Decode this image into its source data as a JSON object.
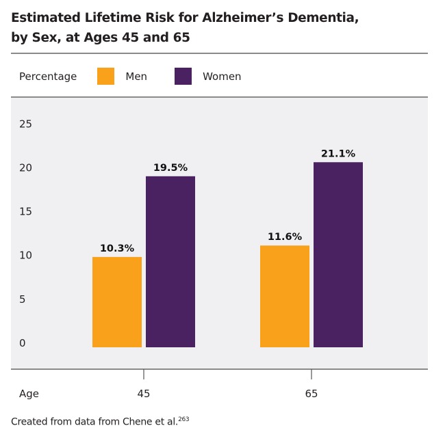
{
  "chart_data": {
    "type": "bar",
    "title": "Estimated Lifetime Risk for Alzheimer's Dementia, by Sex, at Ages 45 and 65",
    "title_lines": [
      "Estimated Lifetime Risk for Alzheimer’s Dementia,",
      "by Sex, at Ages 45 and 65"
    ],
    "ylabel": "Percentage",
    "xlabel": "Age",
    "categories": [
      "45",
      "65"
    ],
    "series": [
      {
        "name": "Men",
        "color": "#f9a11b",
        "values": [
          10.3,
          11.6
        ],
        "labels": [
          "10.3%",
          "11.6%"
        ]
      },
      {
        "name": "Women",
        "color": "#4a2262",
        "values": [
          19.5,
          21.1
        ],
        "labels": [
          "19.5%",
          "21.1%"
        ]
      }
    ],
    "ylim": [
      0,
      25
    ],
    "yticks": [
      "0",
      "5",
      "10",
      "15",
      "20",
      "25"
    ],
    "legend_position": "top-left",
    "grid": false,
    "source": "Created from data from Chene et al.",
    "source_ref": "263"
  }
}
